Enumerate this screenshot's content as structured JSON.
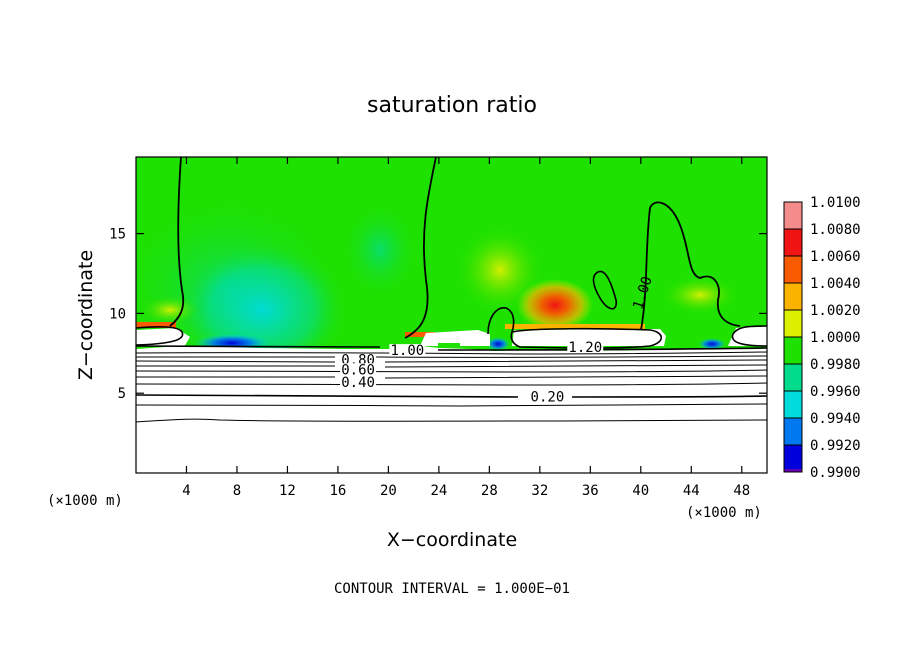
{
  "chart_data": {
    "type": "heatmap",
    "title": "saturation ratio",
    "xlabel": "X−coordinate",
    "ylabel": "Z−coordinate",
    "x_unit_left": "(×1000 m)",
    "x_unit_right": "(×1000 m)",
    "xlim": [
      0,
      50
    ],
    "ylim": [
      0,
      19.8
    ],
    "x_ticks": [
      4,
      8,
      12,
      16,
      20,
      24,
      28,
      32,
      36,
      40,
      44,
      48
    ],
    "y_ticks": [
      5,
      10,
      15
    ],
    "footer": "CONTOUR INTERVAL = 1.000E−01",
    "colorbar": {
      "levels": [
        "1.0100",
        "1.0080",
        "1.0060",
        "1.0040",
        "1.0020",
        "1.0000",
        "0.9980",
        "0.9960",
        "0.9940",
        "0.9920",
        "0.9900"
      ],
      "colors": [
        "#f58c8c",
        "#f01414",
        "#fa5a00",
        "#fab400",
        "#dcf000",
        "#1ee100",
        "#00dc8c",
        "#00dcdc",
        "#0078f0",
        "#0000dc",
        "#6400b4"
      ]
    },
    "contour_labels": [
      {
        "text": "1.00",
        "x": 21.5,
        "y": 7.7
      },
      {
        "text": "1.20",
        "x": 35.6,
        "y": 7.9
      },
      {
        "text": "1.00",
        "x": 40.1,
        "y": 11.3
      },
      {
        "text": "0.80",
        "x": 17.6,
        "y": 7.1
      },
      {
        "text": "0.60",
        "x": 17.6,
        "y": 6.5
      },
      {
        "text": "0.40",
        "x": 17.6,
        "y": 5.7
      },
      {
        "text": "0.20",
        "x": 32.6,
        "y": 4.8
      }
    ]
  }
}
